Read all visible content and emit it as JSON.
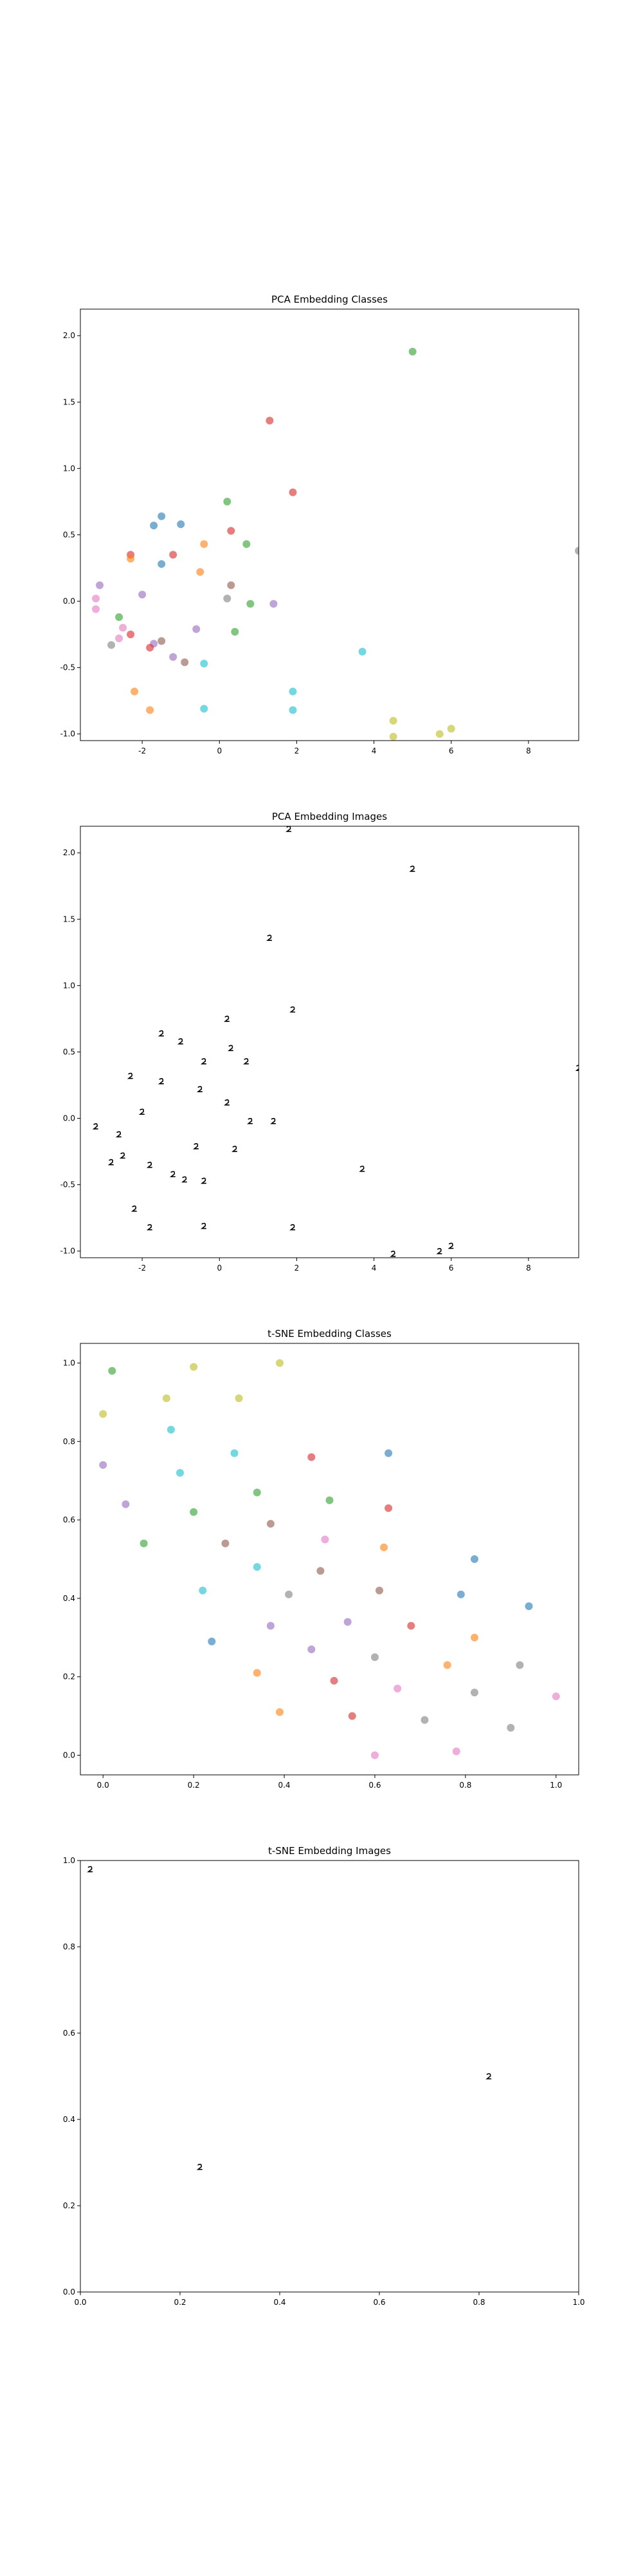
{
  "chart_data": [
    {
      "id": "pca-classes",
      "type": "scatter",
      "title": "PCA Embedding Classes",
      "xlim": [
        -3.6,
        9.3
      ],
      "ylim": [
        -1.05,
        2.2
      ],
      "xticks": [
        -2,
        0,
        2,
        4,
        6,
        8
      ],
      "yticks": [
        -1.0,
        -0.5,
        0.0,
        0.5,
        1.0,
        1.5,
        2.0
      ],
      "grid": false,
      "points": [
        {
          "x": 5.0,
          "y": 1.88,
          "color": "#2ca02c"
        },
        {
          "x": 1.3,
          "y": 1.36,
          "color": "#d62728"
        },
        {
          "x": 1.9,
          "y": 0.82,
          "color": "#d62728"
        },
        {
          "x": 0.2,
          "y": 0.75,
          "color": "#2ca02c"
        },
        {
          "x": -1.5,
          "y": 0.64,
          "color": "#1f77b4"
        },
        {
          "x": -1.7,
          "y": 0.57,
          "color": "#1f77b4"
        },
        {
          "x": -1.0,
          "y": 0.58,
          "color": "#1f77b4"
        },
        {
          "x": 0.3,
          "y": 0.53,
          "color": "#d62728"
        },
        {
          "x": -0.4,
          "y": 0.43,
          "color": "#ff7f0e"
        },
        {
          "x": 0.7,
          "y": 0.43,
          "color": "#2ca02c"
        },
        {
          "x": -2.3,
          "y": 0.35,
          "color": "#d62728"
        },
        {
          "x": -1.2,
          "y": 0.35,
          "color": "#d62728"
        },
        {
          "x": -2.3,
          "y": 0.32,
          "color": "#ff7f0e"
        },
        {
          "x": -1.5,
          "y": 0.28,
          "color": "#1f77b4"
        },
        {
          "x": -0.5,
          "y": 0.22,
          "color": "#ff7f0e"
        },
        {
          "x": -3.1,
          "y": 0.12,
          "color": "#9467bd"
        },
        {
          "x": 0.3,
          "y": 0.12,
          "color": "#8c564b"
        },
        {
          "x": -2.0,
          "y": 0.05,
          "color": "#9467bd"
        },
        {
          "x": 0.2,
          "y": 0.02,
          "color": "#7f7f7f"
        },
        {
          "x": -3.2,
          "y": 0.02,
          "color": "#e377c2"
        },
        {
          "x": 0.8,
          "y": -0.02,
          "color": "#2ca02c"
        },
        {
          "x": 1.4,
          "y": -0.02,
          "color": "#9467bd"
        },
        {
          "x": -3.2,
          "y": -0.06,
          "color": "#e377c2"
        },
        {
          "x": -2.6,
          "y": -0.12,
          "color": "#2ca02c"
        },
        {
          "x": -2.5,
          "y": -0.2,
          "color": "#e377c2"
        },
        {
          "x": -0.6,
          "y": -0.21,
          "color": "#9467bd"
        },
        {
          "x": 0.4,
          "y": -0.23,
          "color": "#2ca02c"
        },
        {
          "x": -2.3,
          "y": -0.25,
          "color": "#d62728"
        },
        {
          "x": -2.6,
          "y": -0.28,
          "color": "#e377c2"
        },
        {
          "x": -2.8,
          "y": -0.33,
          "color": "#7f7f7f"
        },
        {
          "x": -1.7,
          "y": -0.32,
          "color": "#9467bd"
        },
        {
          "x": -1.8,
          "y": -0.35,
          "color": "#d62728"
        },
        {
          "x": -1.5,
          "y": -0.3,
          "color": "#8c564b"
        },
        {
          "x": 3.7,
          "y": -0.38,
          "color": "#17becf"
        },
        {
          "x": -1.2,
          "y": -0.42,
          "color": "#9467bd"
        },
        {
          "x": -0.9,
          "y": -0.46,
          "color": "#8c564b"
        },
        {
          "x": -0.4,
          "y": -0.47,
          "color": "#17becf"
        },
        {
          "x": -2.2,
          "y": -0.68,
          "color": "#ff7f0e"
        },
        {
          "x": 1.9,
          "y": -0.68,
          "color": "#17becf"
        },
        {
          "x": -1.8,
          "y": -0.82,
          "color": "#ff7f0e"
        },
        {
          "x": -0.4,
          "y": -0.81,
          "color": "#17becf"
        },
        {
          "x": 1.9,
          "y": -0.82,
          "color": "#17becf"
        },
        {
          "x": 4.5,
          "y": -0.9,
          "color": "#bcbd22"
        },
        {
          "x": 6.0,
          "y": -0.96,
          "color": "#bcbd22"
        },
        {
          "x": 5.7,
          "y": -1.0,
          "color": "#bcbd22"
        },
        {
          "x": 4.5,
          "y": -1.02,
          "color": "#bcbd22"
        },
        {
          "x": 9.3,
          "y": 0.38,
          "color": "#7f7f7f"
        }
      ]
    },
    {
      "id": "pca-images",
      "type": "scatter",
      "title": "PCA Embedding Images",
      "xlim": [
        -3.6,
        9.3
      ],
      "ylim": [
        -1.05,
        2.2
      ],
      "xticks": [
        -2,
        0,
        2,
        4,
        6,
        8
      ],
      "yticks": [
        -1.0,
        -0.5,
        0.0,
        0.5,
        1.0,
        1.5,
        2.0
      ],
      "grid": false,
      "marker": "digit-image",
      "points": [
        {
          "x": 1.8,
          "y": 2.18
        },
        {
          "x": 5.0,
          "y": 1.88
        },
        {
          "x": 1.3,
          "y": 1.36
        },
        {
          "x": 1.9,
          "y": 0.82
        },
        {
          "x": 0.2,
          "y": 0.75
        },
        {
          "x": -1.5,
          "y": 0.64
        },
        {
          "x": -1.0,
          "y": 0.58
        },
        {
          "x": 0.3,
          "y": 0.53
        },
        {
          "x": -0.4,
          "y": 0.43
        },
        {
          "x": 0.7,
          "y": 0.43
        },
        {
          "x": -2.3,
          "y": 0.32
        },
        {
          "x": -1.5,
          "y": 0.28
        },
        {
          "x": -0.5,
          "y": 0.22
        },
        {
          "x": 0.2,
          "y": 0.12
        },
        {
          "x": -2.0,
          "y": 0.05
        },
        {
          "x": 1.4,
          "y": -0.02
        },
        {
          "x": 0.8,
          "y": -0.02
        },
        {
          "x": -3.2,
          "y": -0.06
        },
        {
          "x": -2.6,
          "y": -0.12
        },
        {
          "x": -0.6,
          "y": -0.21
        },
        {
          "x": 0.4,
          "y": -0.23
        },
        {
          "x": -2.5,
          "y": -0.28
        },
        {
          "x": -2.8,
          "y": -0.33
        },
        {
          "x": -1.8,
          "y": -0.35
        },
        {
          "x": 3.7,
          "y": -0.38
        },
        {
          "x": -1.2,
          "y": -0.42
        },
        {
          "x": -0.9,
          "y": -0.46
        },
        {
          "x": -0.4,
          "y": -0.47
        },
        {
          "x": -2.2,
          "y": -0.68
        },
        {
          "x": 1.9,
          "y": -0.82
        },
        {
          "x": -1.8,
          "y": -0.82
        },
        {
          "x": -0.4,
          "y": -0.81
        },
        {
          "x": 4.5,
          "y": -1.02
        },
        {
          "x": 5.7,
          "y": -1.0
        },
        {
          "x": 6.0,
          "y": -0.96
        },
        {
          "x": 9.3,
          "y": 0.38
        }
      ]
    },
    {
      "id": "tsne-classes",
      "type": "scatter",
      "title": "t-SNE Embedding Classes",
      "xlim": [
        -0.05,
        1.05
      ],
      "ylim": [
        -0.05,
        1.05
      ],
      "xticks": [
        0.0,
        0.2,
        0.4,
        0.6,
        0.8,
        1.0
      ],
      "yticks": [
        0.0,
        0.2,
        0.4,
        0.6,
        0.8,
        1.0
      ],
      "grid": false,
      "points": [
        {
          "x": 0.02,
          "y": 0.98,
          "color": "#2ca02c"
        },
        {
          "x": 0.2,
          "y": 0.99,
          "color": "#bcbd22"
        },
        {
          "x": 0.39,
          "y": 1.0,
          "color": "#bcbd22"
        },
        {
          "x": 0.0,
          "y": 0.87,
          "color": "#bcbd22"
        },
        {
          "x": 0.14,
          "y": 0.91,
          "color": "#bcbd22"
        },
        {
          "x": 0.3,
          "y": 0.91,
          "color": "#bcbd22"
        },
        {
          "x": 0.15,
          "y": 0.83,
          "color": "#17becf"
        },
        {
          "x": 0.29,
          "y": 0.77,
          "color": "#17becf"
        },
        {
          "x": 0.46,
          "y": 0.76,
          "color": "#d62728"
        },
        {
          "x": 0.63,
          "y": 0.77,
          "color": "#1f77b4"
        },
        {
          "x": 0.0,
          "y": 0.74,
          "color": "#9467bd"
        },
        {
          "x": 0.17,
          "y": 0.72,
          "color": "#17becf"
        },
        {
          "x": 0.34,
          "y": 0.67,
          "color": "#2ca02c"
        },
        {
          "x": 0.5,
          "y": 0.65,
          "color": "#2ca02c"
        },
        {
          "x": 0.05,
          "y": 0.64,
          "color": "#9467bd"
        },
        {
          "x": 0.2,
          "y": 0.62,
          "color": "#2ca02c"
        },
        {
          "x": 0.63,
          "y": 0.63,
          "color": "#d62728"
        },
        {
          "x": 0.37,
          "y": 0.59,
          "color": "#8c564b"
        },
        {
          "x": 0.49,
          "y": 0.55,
          "color": "#e377c2"
        },
        {
          "x": 0.27,
          "y": 0.54,
          "color": "#8c564b"
        },
        {
          "x": 0.09,
          "y": 0.54,
          "color": "#2ca02c"
        },
        {
          "x": 0.62,
          "y": 0.53,
          "color": "#ff7f0e"
        },
        {
          "x": 0.82,
          "y": 0.5,
          "color": "#1f77b4"
        },
        {
          "x": 0.34,
          "y": 0.48,
          "color": "#17becf"
        },
        {
          "x": 0.48,
          "y": 0.47,
          "color": "#8c564b"
        },
        {
          "x": 0.22,
          "y": 0.42,
          "color": "#17becf"
        },
        {
          "x": 0.41,
          "y": 0.41,
          "color": "#7f7f7f"
        },
        {
          "x": 0.61,
          "y": 0.42,
          "color": "#8c564b"
        },
        {
          "x": 0.79,
          "y": 0.41,
          "color": "#1f77b4"
        },
        {
          "x": 0.94,
          "y": 0.38,
          "color": "#1f77b4"
        },
        {
          "x": 0.37,
          "y": 0.33,
          "color": "#9467bd"
        },
        {
          "x": 0.54,
          "y": 0.34,
          "color": "#9467bd"
        },
        {
          "x": 0.68,
          "y": 0.33,
          "color": "#d62728"
        },
        {
          "x": 0.24,
          "y": 0.29,
          "color": "#1f77b4"
        },
        {
          "x": 0.46,
          "y": 0.27,
          "color": "#9467bd"
        },
        {
          "x": 0.82,
          "y": 0.3,
          "color": "#ff7f0e"
        },
        {
          "x": 0.6,
          "y": 0.25,
          "color": "#7f7f7f"
        },
        {
          "x": 0.76,
          "y": 0.23,
          "color": "#ff7f0e"
        },
        {
          "x": 0.92,
          "y": 0.23,
          "color": "#7f7f7f"
        },
        {
          "x": 0.34,
          "y": 0.21,
          "color": "#ff7f0e"
        },
        {
          "x": 0.51,
          "y": 0.19,
          "color": "#d62728"
        },
        {
          "x": 0.65,
          "y": 0.17,
          "color": "#e377c2"
        },
        {
          "x": 0.82,
          "y": 0.16,
          "color": "#7f7f7f"
        },
        {
          "x": 1.0,
          "y": 0.15,
          "color": "#e377c2"
        },
        {
          "x": 0.39,
          "y": 0.11,
          "color": "#ff7f0e"
        },
        {
          "x": 0.55,
          "y": 0.1,
          "color": "#d62728"
        },
        {
          "x": 0.71,
          "y": 0.09,
          "color": "#7f7f7f"
        },
        {
          "x": 0.9,
          "y": 0.07,
          "color": "#7f7f7f"
        },
        {
          "x": 0.6,
          "y": 0.0,
          "color": "#e377c2"
        },
        {
          "x": 0.78,
          "y": 0.01,
          "color": "#e377c2"
        }
      ]
    },
    {
      "id": "tsne-images",
      "type": "scatter",
      "title": "t-SNE Embedding Images",
      "xlim": [
        0.0,
        1.0
      ],
      "ylim": [
        0.0,
        1.0
      ],
      "xticks": [
        0.0,
        0.2,
        0.4,
        0.6,
        0.8,
        1.0
      ],
      "yticks": [
        0.0,
        0.2,
        0.4,
        0.6,
        0.8,
        1.0
      ],
      "grid": false,
      "marker": "digit-image",
      "points": [
        {
          "x": 0.02,
          "y": 0.98
        },
        {
          "x": 0.24,
          "y": 0.29
        },
        {
          "x": 0.82,
          "y": 0.5
        }
      ]
    }
  ]
}
